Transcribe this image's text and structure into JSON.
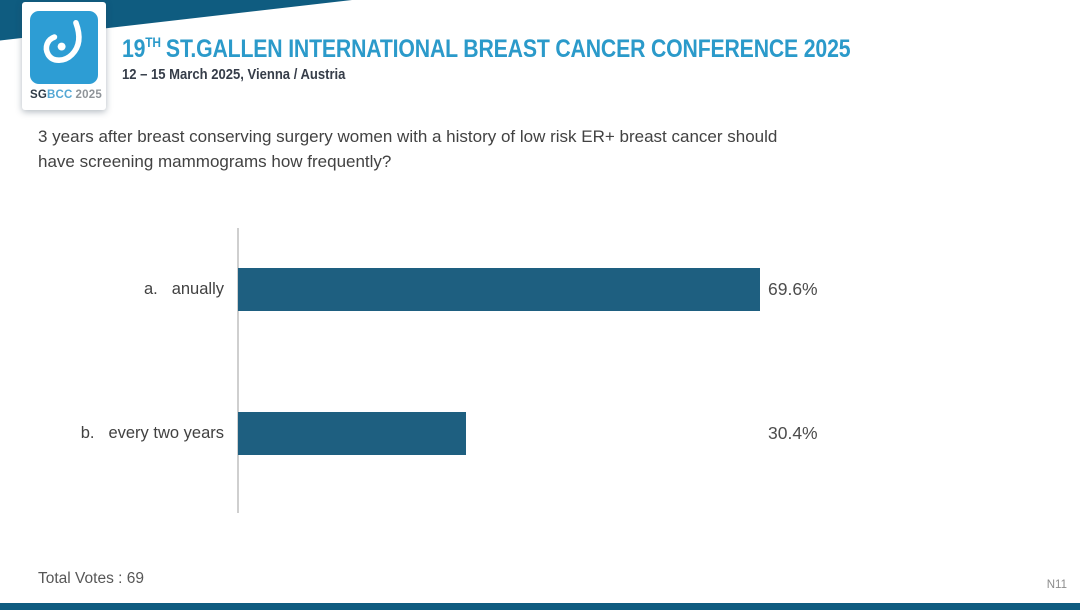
{
  "colors": {
    "brand_teal_dark": "#0f5c80",
    "brand_blue": "#2b9aca",
    "logo_blue": "#2d9dd4",
    "bar_teal": "#1e5f80",
    "text_dark": "#424242",
    "text_gray": "#8c8c8c"
  },
  "header": {
    "logo": {
      "sg": "SG",
      "bcc": "BCC",
      "year": "2025"
    },
    "title_num": "19",
    "title_sup": "TH",
    "title_rest": "ST.GALLEN INTERNATIONAL BREAST CANCER CONFERENCE 2025",
    "subtitle": "12 – 15 March 2025, Vienna / Austria"
  },
  "question": {
    "lines": [
      "3 years after breast conserving surgery women with a history of low risk ER+ breast cancer should",
      "have screening mammograms how frequently?"
    ]
  },
  "chart_data": {
    "type": "bar",
    "orientation": "horizontal",
    "markers": [
      "a.",
      "b."
    ],
    "categories": [
      "anually",
      "every two years"
    ],
    "values": [
      69.6,
      30.4
    ],
    "value_labels": [
      "69.6%",
      "30.4%"
    ],
    "xlim": [
      0,
      100
    ],
    "grid": false,
    "legend": false,
    "title": "",
    "xlabel": "",
    "ylabel": ""
  },
  "footer": {
    "total_votes": "Total Votes : 69",
    "slide_code": "N11"
  }
}
